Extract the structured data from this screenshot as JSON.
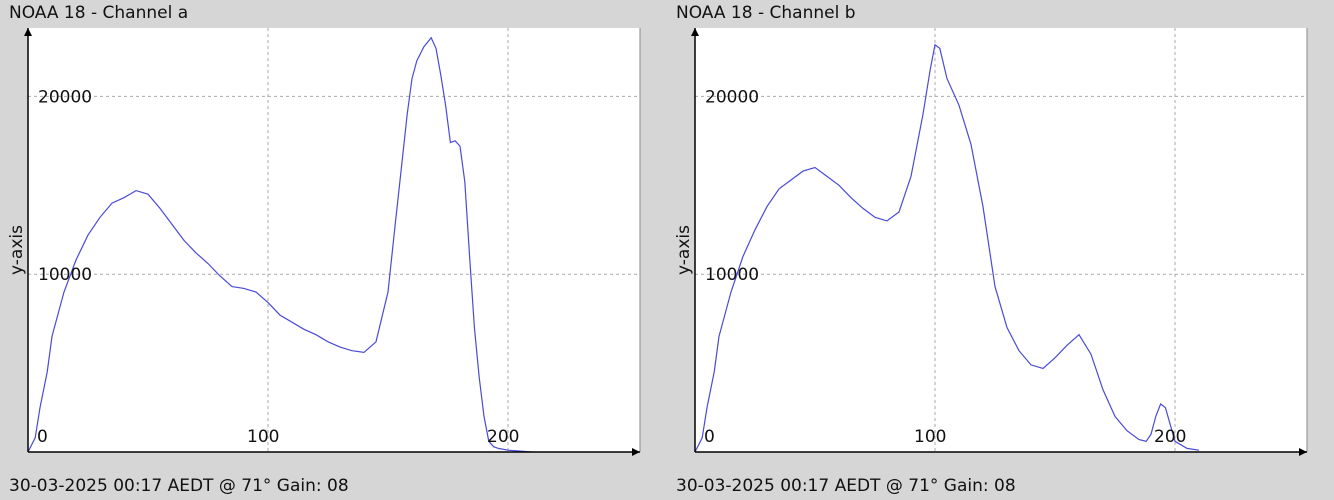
{
  "panels": [
    {
      "title": "NOAA 18 - Channel a",
      "footer": "30-03-2025 00:17 AEDT @ 71° Gain: 08"
    },
    {
      "title": "NOAA 18 - Channel b",
      "footer": "30-03-2025 00:17 AEDT @ 71° Gain: 08"
    }
  ],
  "colors": {
    "line": "#4a4ad8",
    "grid": "#aaaaaa",
    "axis": "#000000",
    "plot_background": "#ffffff",
    "window_background": "#d6d6d6"
  },
  "chart_data": [
    {
      "type": "line",
      "title": "NOAA 18 - Channel a",
      "xlabel": "",
      "ylabel": "y-axis",
      "xlim": [
        0,
        255
      ],
      "ylim": [
        0,
        24000
      ],
      "xticks": [
        0,
        100,
        200
      ],
      "yticks": [
        10000,
        20000
      ],
      "grid": true,
      "series": [
        {
          "values_x": [
            0,
            3,
            5,
            8,
            10,
            15,
            20,
            25,
            30,
            35,
            40,
            45,
            50,
            55,
            60,
            65,
            70,
            75,
            80,
            85,
            90,
            95,
            100,
            105,
            110,
            115,
            120,
            125,
            130,
            135,
            140,
            145,
            150,
            153,
            156,
            158,
            160,
            162,
            165,
            168,
            170,
            172,
            174,
            176,
            178,
            180,
            182,
            184,
            186,
            188,
            190,
            192,
            194,
            196,
            200,
            205,
            210
          ],
          "values_y": [
            0,
            800,
            2500,
            4500,
            6500,
            9000,
            10800,
            12200,
            13200,
            14000,
            14300,
            14700,
            14500,
            13700,
            12800,
            11900,
            11200,
            10600,
            9900,
            9300,
            9200,
            9000,
            8400,
            7700,
            7300,
            6900,
            6600,
            6200,
            5900,
            5700,
            5600,
            6200,
            9000,
            12800,
            16500,
            19000,
            21000,
            22000,
            22800,
            23300,
            22700,
            21200,
            19500,
            17400,
            17500,
            17200,
            15200,
            11000,
            7000,
            4200,
            2000,
            600,
            300,
            200,
            100,
            50,
            0
          ]
        }
      ]
    },
    {
      "type": "line",
      "title": "NOAA 18 - Channel b",
      "xlabel": "",
      "ylabel": "y-axis",
      "xlim": [
        0,
        255
      ],
      "ylim": [
        0,
        24000
      ],
      "xticks": [
        0,
        100,
        200
      ],
      "yticks": [
        10000,
        20000
      ],
      "grid": true,
      "series": [
        {
          "values_x": [
            0,
            3,
            5,
            8,
            10,
            15,
            20,
            25,
            30,
            35,
            40,
            45,
            50,
            55,
            60,
            65,
            70,
            75,
            80,
            85,
            90,
            95,
            98,
            100,
            102,
            105,
            110,
            115,
            120,
            125,
            130,
            135,
            140,
            145,
            150,
            155,
            160,
            165,
            170,
            175,
            180,
            185,
            188,
            190,
            192,
            194,
            196,
            200,
            205,
            210
          ],
          "values_y": [
            0,
            800,
            2500,
            4500,
            6500,
            9000,
            11000,
            12500,
            13800,
            14800,
            15300,
            15800,
            16000,
            15500,
            15000,
            14300,
            13700,
            13200,
            13000,
            13500,
            15500,
            19000,
            21500,
            22900,
            22700,
            21000,
            19500,
            17300,
            13800,
            9300,
            7000,
            5700,
            4900,
            4700,
            5300,
            6000,
            6600,
            5500,
            3500,
            2000,
            1200,
            700,
            600,
            1000,
            2000,
            2700,
            2500,
            600,
            200,
            100
          ]
        }
      ]
    }
  ]
}
